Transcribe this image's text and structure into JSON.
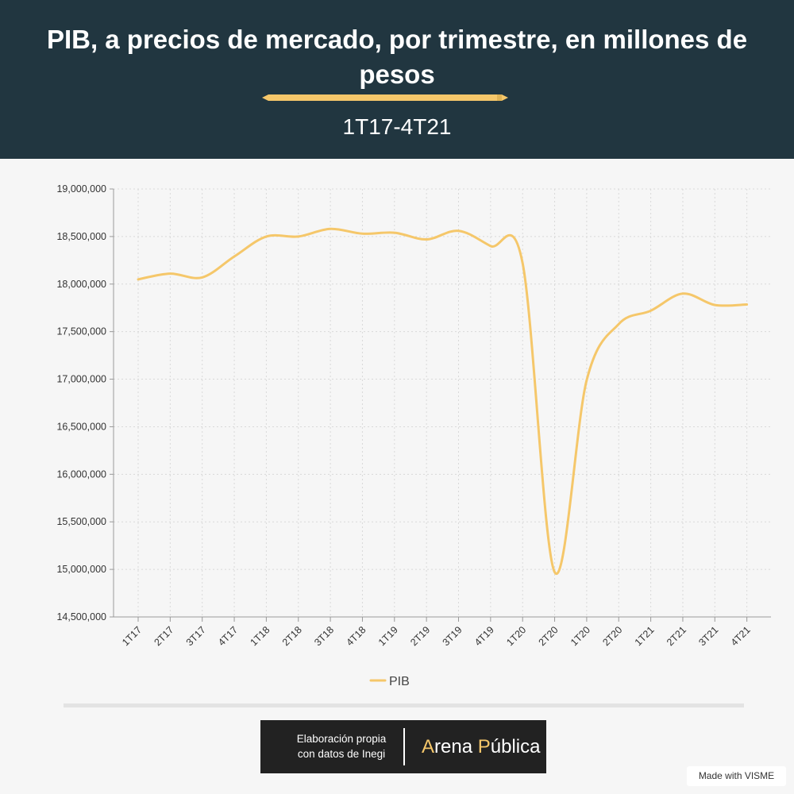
{
  "header": {
    "title": "PIB, a precios de mercado, por trimestre, en millones de pesos",
    "subtitle": "1T17-4T21"
  },
  "chart_data": {
    "type": "line",
    "categories": [
      "1T17",
      "2T17",
      "3T17",
      "4T17",
      "1T18",
      "2T18",
      "3T18",
      "4T18",
      "1T19",
      "2T19",
      "3T19",
      "4T19",
      "1T20",
      "2T20",
      "1T20",
      "2T20",
      "1T21",
      "2T21",
      "3T21",
      "4T21"
    ],
    "series": [
      {
        "name": "PIB",
        "values": [
          18050000,
          18110000,
          18070000,
          18290000,
          18500000,
          18500000,
          18580000,
          18530000,
          18540000,
          18470000,
          18560000,
          18400000,
          18220000,
          14970000,
          16990000,
          17580000,
          17720000,
          17900000,
          17780000,
          17785000
        ]
      }
    ],
    "y_ticks": [
      "14,500,000",
      "15,000,000",
      "15,500,000",
      "16,000,000",
      "16,500,000",
      "17,000,000",
      "17,500,000",
      "18,000,000",
      "18,500,000",
      "19,000,000"
    ],
    "ylim": [
      14500000,
      19000000
    ],
    "grid": true,
    "legend_position": "bottom-center",
    "line_color": "#f5c76a",
    "xlabel": "",
    "ylabel": ""
  },
  "credit": {
    "line1": "Elaboración propia",
    "line2": "con datos de Inegi",
    "brand_a": "A",
    "brand_rena": "rena ",
    "brand_p": "P",
    "brand_ublica": "ública"
  },
  "footer": {
    "made_with": "Made with VISME"
  },
  "colors": {
    "header_bg": "#213640",
    "accent": "#f5c76a",
    "background": "#f6f6f6"
  }
}
